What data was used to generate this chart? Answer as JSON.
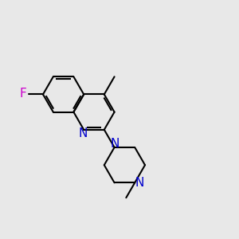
{
  "bg_color": "#e8e8e8",
  "bond_color": "#000000",
  "n_color": "#0000cd",
  "f_color": "#cc00cc",
  "bond_width": 1.5,
  "doff": 0.09,
  "font_size": 11,
  "fig_size": [
    3.0,
    3.0
  ],
  "dpi": 100,
  "xlim": [
    -4.0,
    7.5
  ],
  "ylim": [
    -4.5,
    5.5
  ]
}
